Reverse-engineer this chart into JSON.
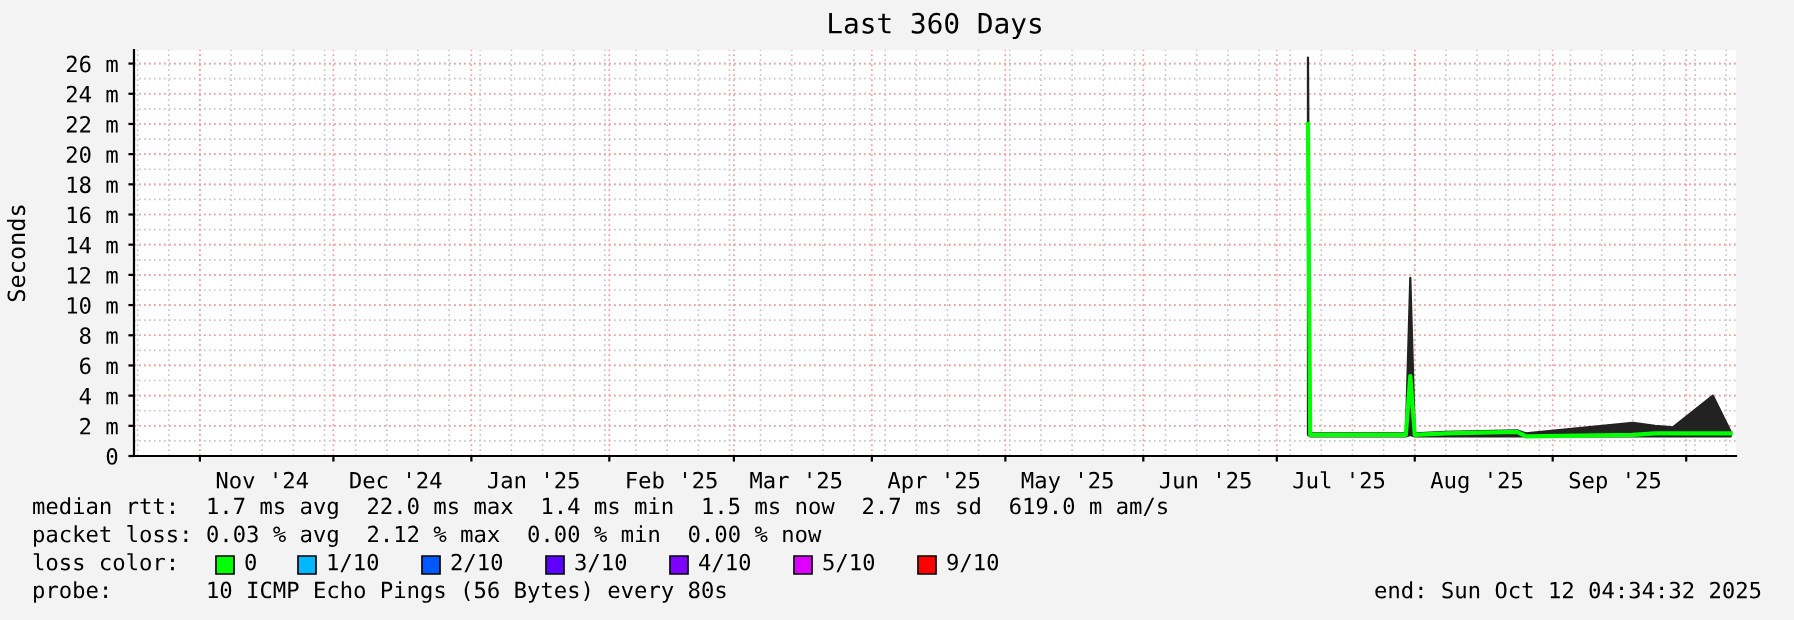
{
  "chart_data": {
    "type": "line",
    "title": "Last 360 Days",
    "ylabel": "Seconds",
    "x": [
      "2025-07-08",
      "2025-07-08T12:00",
      "2025-07-09",
      "2025-07-30",
      "2025-07-31",
      "2025-08-01",
      "2025-08-08",
      "2025-08-24",
      "2025-08-26",
      "2025-09-19",
      "2025-09-24",
      "2025-09-28",
      "2025-10-07",
      "2025-10-11"
    ],
    "series": [
      {
        "name": "0",
        "color": "#00ff00",
        "values": [
          22,
          1.4,
          1.4,
          1.4,
          5.3,
          1.4,
          1.5,
          1.6,
          1.3,
          1.4,
          1.5,
          1.5,
          1.5,
          1.5
        ],
        "lower": [
          1.4,
          1.3,
          1.3,
          1.3,
          1.4,
          1.3,
          1.3,
          1.3,
          1.3,
          1.3,
          1.3,
          1.3,
          1.3,
          1.3
        ],
        "upper": [
          26.4,
          1.5,
          1.5,
          1.5,
          11.8,
          1.5,
          1.6,
          1.7,
          1.5,
          2.2,
          2.0,
          1.9,
          4.0,
          1.6
        ]
      },
      {
        "name": "1/10",
        "color": "#00b8ff",
        "values": [
          null,
          null,
          null,
          null,
          null,
          null,
          null,
          null,
          null,
          null,
          null,
          null,
          null,
          null
        ]
      },
      {
        "name": "2/10",
        "color": "#0059ff",
        "values": [
          null,
          null,
          null,
          null,
          null,
          null,
          null,
          null,
          null,
          null,
          null,
          null,
          null,
          null
        ]
      },
      {
        "name": "3/10",
        "color": "#5e00ff",
        "values": [
          null,
          null,
          null,
          null,
          null,
          null,
          null,
          null,
          null,
          null,
          null,
          null,
          null,
          null
        ]
      },
      {
        "name": "4/10",
        "color": "#7e00ff",
        "values": [
          null,
          null,
          null,
          null,
          null,
          null,
          null,
          null,
          null,
          null,
          null,
          null,
          null,
          null
        ]
      },
      {
        "name": "5/10",
        "color": "#dd00ff",
        "values": [
          null,
          null,
          null,
          null,
          null,
          null,
          null,
          null,
          null,
          null,
          null,
          null,
          null,
          null
        ]
      },
      {
        "name": "9/10",
        "color": "#ff0000",
        "values": [
          null,
          null,
          null,
          null,
          null,
          null,
          null,
          null,
          null,
          null,
          null,
          null,
          null,
          null
        ]
      }
    ],
    "legend_title": "loss color:",
    "legend": "bottom",
    "grid": true,
    "xlim": [
      "2024-10-17T04:34",
      "2025-10-12T04:34"
    ],
    "xticks": [
      {
        "value": "2024-11-01",
        "label": null
      },
      {
        "value": "2024-11-15",
        "label": "Nov '24"
      },
      {
        "value": "2024-12-01",
        "label": null
      },
      {
        "value": "2024-12-15",
        "label": "Dec '24"
      },
      {
        "value": "2025-01-01",
        "label": null
      },
      {
        "value": "2025-01-15",
        "label": "Jan '25"
      },
      {
        "value": "2025-02-01",
        "label": null
      },
      {
        "value": "2025-02-15",
        "label": "Feb '25"
      },
      {
        "value": "2025-03-01",
        "label": null
      },
      {
        "value": "2025-03-15",
        "label": "Mar '25"
      },
      {
        "value": "2025-04-01",
        "label": null
      },
      {
        "value": "2025-04-15",
        "label": "Apr '25"
      },
      {
        "value": "2025-05-01",
        "label": null
      },
      {
        "value": "2025-05-15",
        "label": "May '25"
      },
      {
        "value": "2025-06-01",
        "label": null
      },
      {
        "value": "2025-06-15",
        "label": "Jun '25"
      },
      {
        "value": "2025-07-01",
        "label": null
      },
      {
        "value": "2025-07-15",
        "label": "Jul '25"
      },
      {
        "value": "2025-08-01",
        "label": null
      },
      {
        "value": "2025-08-15",
        "label": "Aug '25"
      },
      {
        "value": "2025-09-01",
        "label": null
      },
      {
        "value": "2025-09-15",
        "label": "Sep '25"
      },
      {
        "value": "2025-10-01",
        "label": null
      }
    ],
    "ylim": [
      0,
      26.9
    ],
    "yticks": [
      0,
      {
        "value": 2,
        "label": "2 m"
      },
      {
        "value": 4,
        "label": "4 m"
      },
      {
        "value": 6,
        "label": "6 m"
      },
      {
        "value": 8,
        "label": "8 m"
      },
      {
        "value": 10,
        "label": "10 m"
      },
      {
        "value": 12,
        "label": "12 m"
      },
      {
        "value": 14,
        "label": "14 m"
      },
      {
        "value": 16,
        "label": "16 m"
      },
      {
        "value": 18,
        "label": "18 m"
      },
      {
        "value": 20,
        "label": "20 m"
      },
      {
        "value": 22,
        "label": "22 m"
      },
      {
        "value": 24,
        "label": "24 m"
      },
      {
        "value": 26,
        "label": "26 m"
      }
    ],
    "annotations": [
      "median rtt:  1.7 ms avg  22.0 ms max  1.4 ms min  1.5 ms now  2.7 ms sd  619.0 m am/s",
      "packet loss: 0.03 % avg  2.12 % max  0.00 % min  0.00 % now",
      "probe:       10 ICMP Echo Pings (56 Bytes) every 80s",
      "end: Sun Oct 12 04:34:32 2025"
    ]
  }
}
